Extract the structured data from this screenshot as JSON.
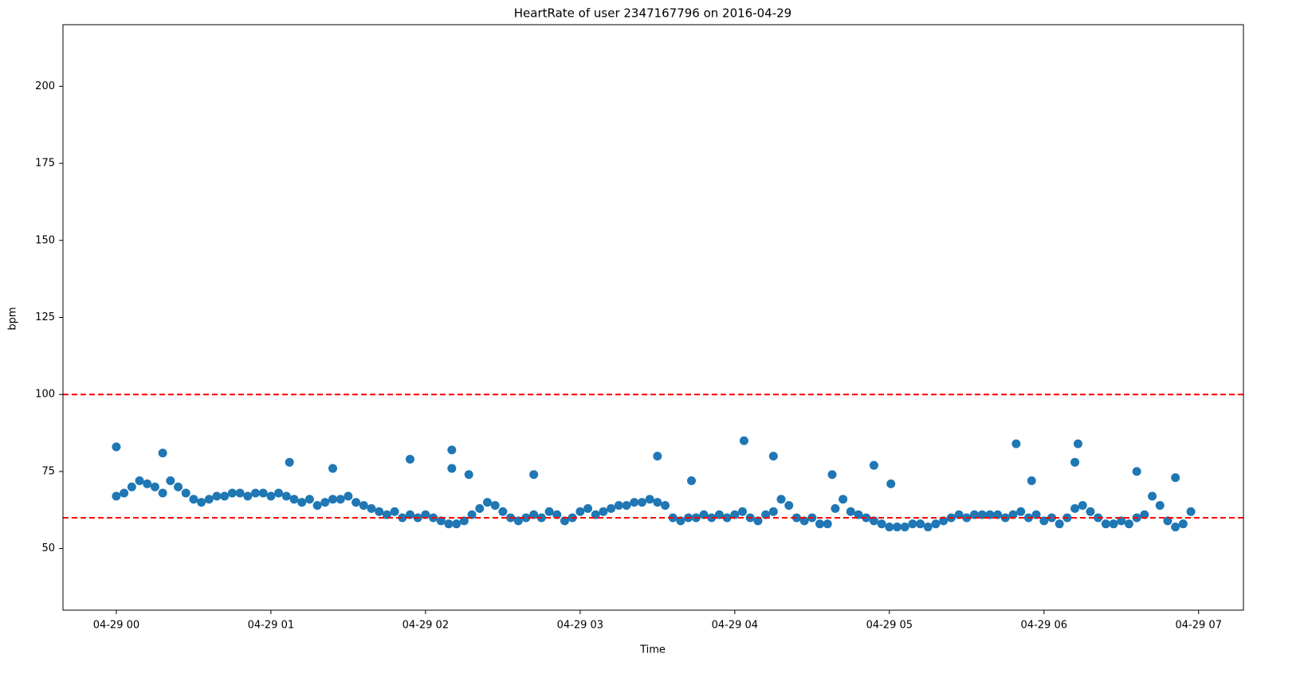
{
  "chart_data": {
    "type": "scatter",
    "title": "HeartRate of user 2347167796 on 2016-04-29",
    "x_label": "Time",
    "y_label": "bpm",
    "xlim": [
      -0.345,
      7.29
    ],
    "ylim": [
      30,
      220
    ],
    "xticks": [
      {
        "value": 0,
        "label": "04-29 00"
      },
      {
        "value": 1,
        "label": "04-29 01"
      },
      {
        "value": 2,
        "label": "04-29 02"
      },
      {
        "value": 3,
        "label": "04-29 03"
      },
      {
        "value": 4,
        "label": "04-29 04"
      },
      {
        "value": 5,
        "label": "04-29 05"
      },
      {
        "value": 6,
        "label": "04-29 06"
      },
      {
        "value": 7,
        "label": "04-29 07"
      }
    ],
    "yticks": [
      50,
      75,
      100,
      125,
      150,
      175,
      200
    ],
    "hlines": [
      100,
      60
    ],
    "hline_color": "#ff0000",
    "grid": false,
    "series": [
      {
        "color": "#1f77b4",
        "x": [
          0.0,
          0.05,
          0.1,
          0.15,
          0.2,
          0.25,
          0.3,
          0.35,
          0.4,
          0.45,
          0.5,
          0.55,
          0.6,
          0.65,
          0.7,
          0.75,
          0.8,
          0.85,
          0.9,
          0.95,
          1.0,
          1.05,
          1.1,
          1.15,
          1.2,
          1.25,
          1.3,
          1.35,
          1.4,
          1.45,
          1.5,
          1.55,
          1.6,
          1.65,
          1.7,
          1.75,
          1.8,
          1.85,
          1.9,
          1.95,
          2.0,
          2.05,
          2.1,
          2.15,
          2.2,
          2.25,
          2.3,
          2.35,
          2.4,
          2.45,
          2.5,
          2.55,
          2.6,
          2.65,
          2.7,
          2.75,
          2.8,
          2.85,
          2.9,
          2.95,
          3.0,
          3.05,
          3.1,
          3.15,
          3.2,
          3.25,
          3.3,
          3.35,
          3.4,
          3.45,
          3.5,
          3.55,
          3.6,
          3.65,
          3.7,
          3.75,
          3.8,
          3.85,
          3.9,
          3.95,
          4.0,
          4.05,
          4.1,
          4.15,
          4.2,
          4.25,
          4.3,
          4.35,
          4.4,
          4.45,
          4.5,
          4.55,
          4.6,
          4.65,
          4.7,
          4.75,
          4.8,
          4.85,
          4.9,
          4.95,
          5.0,
          5.05,
          5.1,
          5.15,
          5.2,
          5.25,
          5.3,
          5.35,
          5.4,
          5.45,
          5.5,
          5.55,
          5.6,
          5.65,
          5.7,
          5.75,
          5.8,
          5.85,
          5.9,
          5.95,
          6.0,
          6.05,
          6.1,
          6.15,
          6.2,
          6.25,
          6.3,
          6.35,
          6.4,
          6.45,
          6.5,
          6.55,
          6.6,
          6.65,
          6.7,
          6.75,
          6.8,
          6.85,
          6.9,
          6.95,
          0.0,
          0.3,
          1.12,
          1.4,
          1.9,
          2.17,
          2.17,
          2.28,
          2.7,
          3.5,
          3.72,
          4.06,
          4.25,
          4.63,
          4.9,
          5.01,
          5.82,
          5.92,
          6.22,
          6.2,
          6.6,
          6.85
        ],
        "values": [
          67,
          68,
          70,
          72,
          71,
          70,
          68,
          72,
          70,
          68,
          66,
          65,
          66,
          67,
          67,
          68,
          68,
          67,
          68,
          68,
          67,
          68,
          67,
          66,
          65,
          66,
          64,
          65,
          66,
          66,
          67,
          65,
          64,
          63,
          62,
          61,
          62,
          60,
          61,
          60,
          61,
          60,
          59,
          58,
          58,
          59,
          61,
          63,
          65,
          64,
          62,
          60,
          59,
          60,
          61,
          60,
          62,
          61,
          59,
          60,
          62,
          63,
          61,
          62,
          63,
          64,
          64,
          65,
          65,
          66,
          65,
          64,
          60,
          59,
          60,
          60,
          61,
          60,
          61,
          60,
          61,
          62,
          60,
          59,
          61,
          62,
          66,
          64,
          60,
          59,
          60,
          58,
          58,
          63,
          66,
          62,
          61,
          60,
          59,
          58,
          57,
          57,
          57,
          58,
          58,
          57,
          58,
          59,
          60,
          61,
          60,
          61,
          61,
          61,
          61,
          60,
          61,
          62,
          60,
          61,
          59,
          60,
          58,
          60,
          63,
          64,
          62,
          60,
          58,
          58,
          59,
          58,
          60,
          61,
          67,
          64,
          59,
          57,
          58,
          62,
          83,
          81,
          78,
          76,
          79,
          82,
          76,
          74,
          74,
          80,
          72,
          85,
          80,
          74,
          77,
          71,
          84,
          72,
          84,
          78,
          75,
          73
        ]
      }
    ]
  }
}
